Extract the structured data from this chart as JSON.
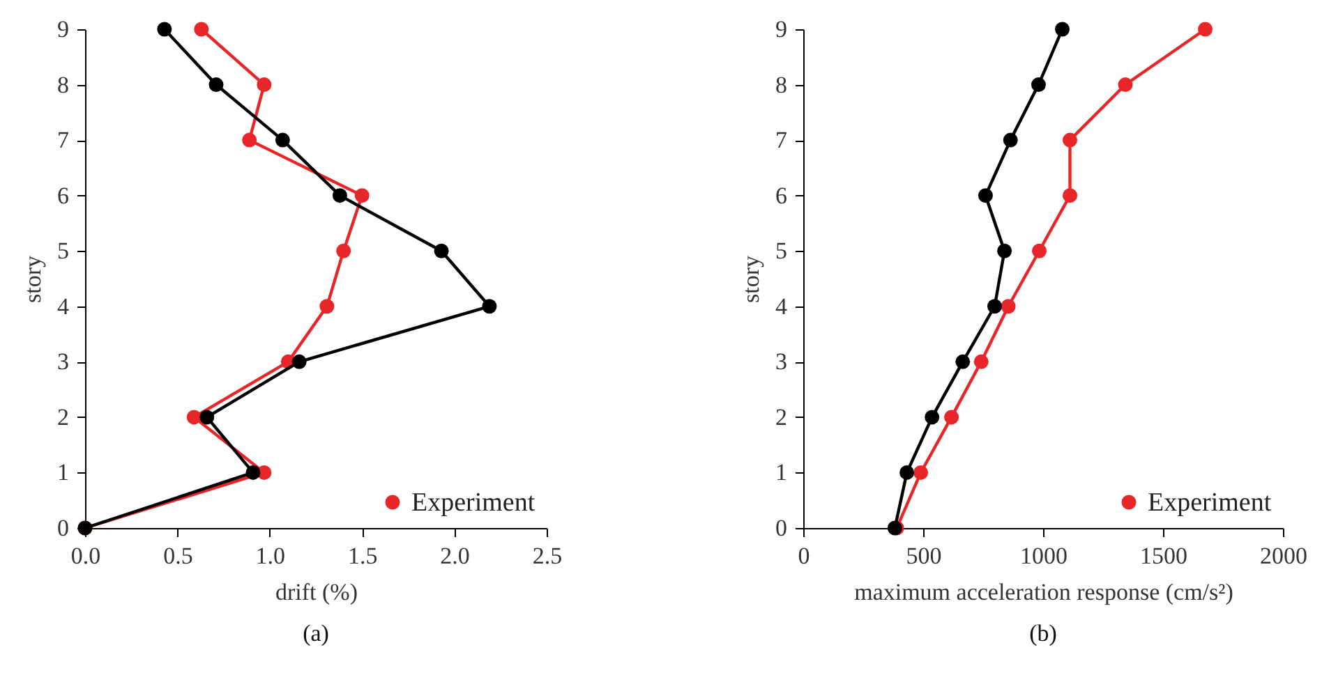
{
  "chart_data": [
    {
      "type": "line",
      "xlabel": "drift (%)",
      "ylabel": "story",
      "annotations": [
        "(a)"
      ],
      "marker": "circle",
      "legend": "bottom right",
      "xlim": [
        0,
        2.5
      ],
      "xticks": [
        {
          "value": 0,
          "label": "0.0"
        },
        {
          "value": 0.5,
          "label": "0.5"
        },
        {
          "value": 1,
          "label": "1.0"
        },
        {
          "value": 1.5,
          "label": "1.5"
        },
        {
          "value": 2,
          "label": "2.0"
        },
        {
          "value": 2.5,
          "label": "2.5"
        }
      ],
      "ylim": [
        0,
        9
      ],
      "yticks": [
        0,
        1,
        2,
        3,
        4,
        5,
        6,
        7,
        8,
        9
      ],
      "series": [
        {
          "name": "Experiment",
          "color": "#e8262a",
          "x": [
            0,
            0.97,
            0.59,
            1.1,
            1.31,
            1.4,
            1.5,
            0.89,
            0.97,
            0.63
          ],
          "values": [
            0,
            1,
            2,
            3,
            4,
            5,
            6,
            7,
            8,
            9
          ]
        },
        {
          "color": "#000000",
          "x": [
            0,
            0.91,
            0.66,
            1.16,
            2.19,
            1.93,
            1.38,
            1.07,
            0.71,
            0.43
          ],
          "values": [
            0,
            1,
            2,
            3,
            4,
            5,
            6,
            7,
            8,
            9
          ]
        }
      ]
    },
    {
      "type": "line",
      "xlabel": "maximum acceleration response (cm/s²)",
      "ylabel": "story",
      "annotations": [
        "(b)"
      ],
      "marker": "circle",
      "legend": "bottom right",
      "xlim": [
        0,
        2000
      ],
      "xticks": [
        0,
        500,
        1000,
        1500,
        2000
      ],
      "ylim": [
        0,
        9
      ],
      "yticks": [
        0,
        1,
        2,
        3,
        4,
        5,
        6,
        7,
        8,
        9
      ],
      "series": [
        {
          "name": "Experiment",
          "color": "#e8262a",
          "x": [
            390,
            490,
            618,
            742,
            855,
            984,
            1112,
            1112,
            1343,
            1676
          ],
          "values": [
            0,
            1,
            2,
            3,
            4,
            5,
            6,
            7,
            8,
            9
          ]
        },
        {
          "color": "#000000",
          "x": [
            382,
            432,
            537,
            665,
            798,
            839,
            760,
            864,
            981,
            1080
          ],
          "values": [
            0,
            1,
            2,
            3,
            4,
            5,
            6,
            7,
            8,
            9
          ]
        }
      ]
    }
  ]
}
